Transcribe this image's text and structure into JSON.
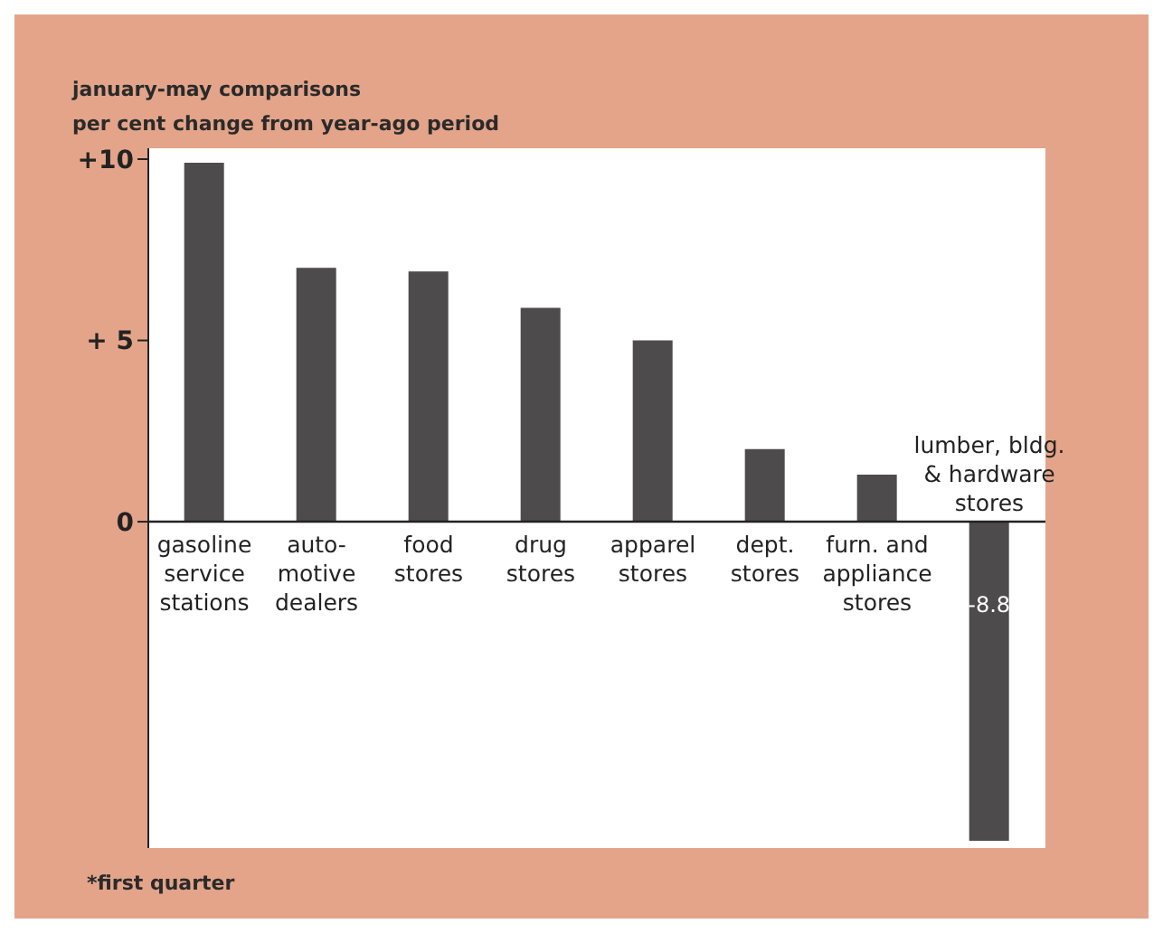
{
  "chart_data": {
    "type": "bar",
    "title": "january-may comparisons",
    "subtitle": "per cent change from year-ago period",
    "categories": [
      "gasoline\nservice\nstations",
      "auto-\nmotive\ndealers",
      "food\nstores",
      "drug\nstores",
      "apparel\nstores",
      "dept.\nstores",
      "furn. and\nappliance\nstores",
      "lumber, bldg.\n& hardware\nstores"
    ],
    "values": [
      9.9,
      7.0,
      6.9,
      5.9,
      5.0,
      2.0,
      1.3,
      -8.8
    ],
    "value_labels": [
      null,
      null,
      null,
      null,
      null,
      null,
      null,
      "-8.8"
    ],
    "color": "#4d4b4b",
    "ylim": [
      -9,
      10.3
    ],
    "yticks": [
      {
        "value": 10,
        "label": "+10"
      },
      {
        "value": 5,
        "label": "+ 5"
      },
      0
    ],
    "grid": false,
    "annotations": [
      "*first quarter"
    ]
  }
}
